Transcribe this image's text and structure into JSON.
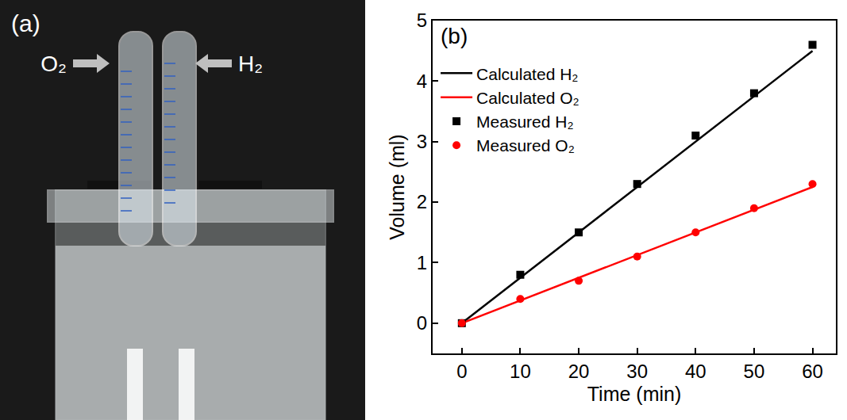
{
  "photo_panel": {
    "label": "(a)",
    "arrow_labels": [
      "O₂",
      "H₂"
    ]
  },
  "chart_data": {
    "type": "line",
    "panel_label": "(b)",
    "x_label": "Time (min)",
    "y_label": "Volume (ml)",
    "xlim": [
      -5,
      64
    ],
    "xticks": [
      0,
      10,
      20,
      30,
      40,
      50,
      60
    ],
    "ylim": [
      -0.5,
      5
    ],
    "yticks": [
      0,
      1,
      2,
      3,
      4,
      5
    ],
    "grid": false,
    "legend": "upper left",
    "series": [
      {
        "name": "Calculated H₂",
        "type": "line",
        "color": "#000000",
        "line_style": "solid",
        "x": [
          0,
          60
        ],
        "values": [
          0,
          4.5
        ]
      },
      {
        "name": "Calculated O₂",
        "type": "line",
        "color": "#ff0000",
        "line_style": "solid",
        "x": [
          0,
          60
        ],
        "values": [
          0,
          2.25
        ]
      },
      {
        "name": "Measured H₂",
        "type": "scatter",
        "color": "#000000",
        "marker": "square",
        "x": [
          0,
          10,
          20,
          30,
          40,
          50,
          60
        ],
        "values": [
          0,
          0.8,
          1.5,
          2.3,
          3.1,
          3.8,
          4.6
        ]
      },
      {
        "name": "Measured O₂",
        "type": "scatter",
        "color": "#ff0000",
        "marker": "circle",
        "x": [
          0,
          10,
          20,
          30,
          40,
          50,
          60
        ],
        "values": [
          0,
          0.4,
          0.7,
          1.1,
          1.5,
          1.9,
          2.3
        ]
      }
    ]
  }
}
